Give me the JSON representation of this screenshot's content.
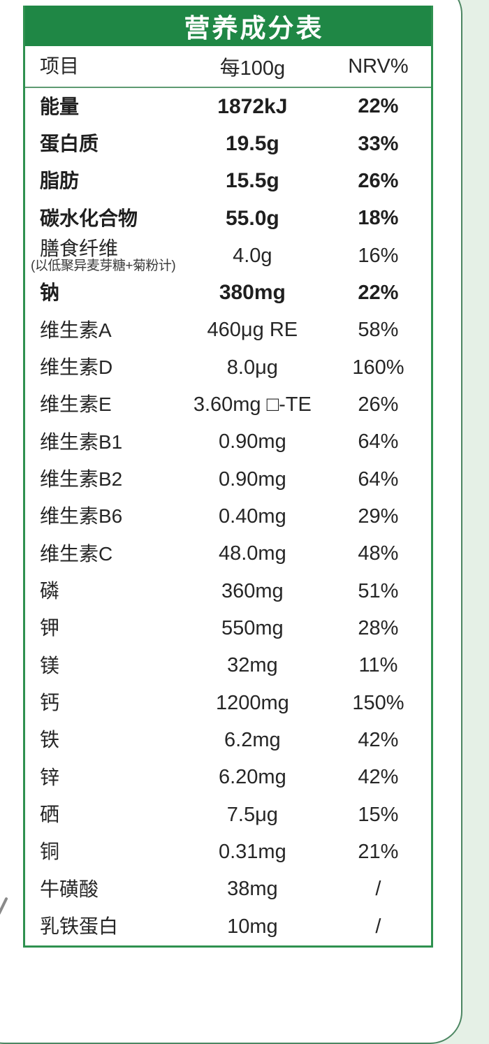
{
  "table": {
    "title": "营养成分表",
    "columns": {
      "item": "项目",
      "per100g": "每100g",
      "nrv": "NRV%"
    },
    "rows": [
      {
        "name": "能量",
        "note": "",
        "value": "1872kJ",
        "nrv": "22%",
        "bold": true
      },
      {
        "name": "蛋白质",
        "note": "",
        "value": "19.5g",
        "nrv": "33%",
        "bold": true
      },
      {
        "name": "脂肪",
        "note": "",
        "value": "15.5g",
        "nrv": "26%",
        "bold": true
      },
      {
        "name": "碳水化合物",
        "note": "",
        "value": "55.0g",
        "nrv": "18%",
        "bold": true
      },
      {
        "name": "膳食纤维",
        "note": "(以低聚异麦芽糖+菊粉计)",
        "value": "4.0g",
        "nrv": "16%",
        "bold": false
      },
      {
        "name": "钠",
        "note": "",
        "value": "380mg",
        "nrv": "22%",
        "bold": true
      },
      {
        "name": "维生素A",
        "note": "",
        "value": "460μg RE",
        "nrv": "58%",
        "bold": false
      },
      {
        "name": "维生素D",
        "note": "",
        "value": "8.0μg",
        "nrv": "160%",
        "bold": false
      },
      {
        "name": "维生素E",
        "note": "",
        "value": "3.60mg □-TE",
        "nrv": "26%",
        "bold": false
      },
      {
        "name": "维生素B1",
        "note": "",
        "value": "0.90mg",
        "nrv": "64%",
        "bold": false
      },
      {
        "name": "维生素B2",
        "note": "",
        "value": "0.90mg",
        "nrv": "64%",
        "bold": false
      },
      {
        "name": "维生素B6",
        "note": "",
        "value": "0.40mg",
        "nrv": "29%",
        "bold": false
      },
      {
        "name": "维生素C",
        "note": "",
        "value": "48.0mg",
        "nrv": "48%",
        "bold": false
      },
      {
        "name": "磷",
        "note": "",
        "value": "360mg",
        "nrv": "51%",
        "bold": false
      },
      {
        "name": "钾",
        "note": "",
        "value": "550mg",
        "nrv": "28%",
        "bold": false
      },
      {
        "name": "镁",
        "note": "",
        "value": "32mg",
        "nrv": "11%",
        "bold": false
      },
      {
        "name": "钙",
        "note": "",
        "value": "1200mg",
        "nrv": "150%",
        "bold": false
      },
      {
        "name": "铁",
        "note": "",
        "value": "6.2mg",
        "nrv": "42%",
        "bold": false
      },
      {
        "name": "锌",
        "note": "",
        "value": "6.20mg",
        "nrv": "42%",
        "bold": false
      },
      {
        "name": "硒",
        "note": "",
        "value": "7.5μg",
        "nrv": "15%",
        "bold": false
      },
      {
        "name": "铜",
        "note": "",
        "value": "0.31mg",
        "nrv": "21%",
        "bold": false
      },
      {
        "name": "牛磺酸",
        "note": "",
        "value": "38mg",
        "nrv": "/",
        "bold": false
      },
      {
        "name": "乳铁蛋白",
        "note": "",
        "value": "10mg",
        "nrv": "/",
        "bold": false
      }
    ]
  },
  "colors": {
    "header_green": "#1f8745",
    "table_border_green": "#2f9150",
    "divider_green": "#5e9a72",
    "card_border_green": "#4c8662",
    "page_background": "#e5f0e6",
    "text_dark": "#262626",
    "title_white": "#ffffff"
  }
}
